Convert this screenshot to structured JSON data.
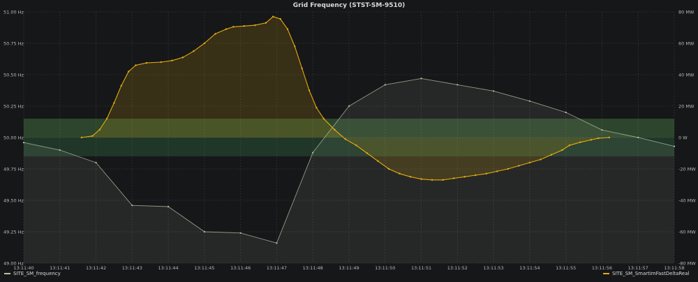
{
  "chart_data": {
    "type": "line",
    "title": "Grid Frequency (STST-SM-9510)",
    "x": [
      "13:11:40",
      "13:11:41",
      "13:11:42",
      "13:11:43",
      "13:11:44",
      "13:11:45",
      "13:11:46",
      "13:11:47",
      "13:11:48",
      "13:11:49",
      "13:11:50",
      "13:11:51",
      "13:11:52",
      "13:11:53",
      "13:11:54",
      "13:11:55",
      "13:11:56",
      "13:11:57",
      "13:11:58"
    ],
    "left_axis": {
      "ticks": [
        "51.00 Hz",
        "50.75 Hz",
        "50.50 Hz",
        "50.25 Hz",
        "50.00 Hz",
        "49.75 Hz",
        "49.50 Hz",
        "49.25 Hz",
        "49.00 Hz"
      ],
      "ylim": [
        49.0,
        51.0
      ]
    },
    "right_axis": {
      "ticks": [
        "80 MW",
        "60 MW",
        "40 MW",
        "20 MW",
        "0 W",
        "-20 MW",
        "-40 MW",
        "-60 MW",
        "-80 MW"
      ],
      "ylim": [
        -80,
        80
      ]
    },
    "threshold_bands": [
      {
        "from": 50.0,
        "to": 50.15,
        "color": "#2f4a2f"
      },
      {
        "from": 49.85,
        "to": 50.0,
        "color": "#203a2a"
      }
    ],
    "series": [
      {
        "name": "SITE_SM_frequency",
        "axis": "left",
        "color": "#b7c3a6",
        "points": [
          [
            "13:11:40",
            49.96
          ],
          [
            "13:11:41",
            49.9
          ],
          [
            "13:11:42",
            49.8
          ],
          [
            "13:11:43",
            49.46
          ],
          [
            "13:11:44",
            49.45
          ],
          [
            "13:11:45",
            49.25
          ],
          [
            "13:11:46",
            49.24
          ],
          [
            "13:11:47",
            49.16
          ],
          [
            "13:11:48",
            49.88
          ],
          [
            "13:11:49",
            50.25
          ],
          [
            "13:11:50",
            50.42
          ],
          [
            "13:11:51",
            50.47
          ],
          [
            "13:11:52",
            50.42
          ],
          [
            "13:11:53",
            50.37
          ],
          [
            "13:11:54",
            50.29
          ],
          [
            "13:11:55",
            50.2
          ],
          [
            "13:11:56",
            50.06
          ],
          [
            "13:11:57",
            50.0
          ],
          [
            "13:11:58",
            49.93
          ]
        ]
      },
      {
        "name": "SITE_SM_SmartimFastDeltaReal",
        "axis": "right",
        "color": "#e5ac0e",
        "points": [
          [
            "13:11:41.6",
            0
          ],
          [
            "13:11:41.9",
            1
          ],
          [
            "13:11:42.1",
            5
          ],
          [
            "13:11:42.3",
            12
          ],
          [
            "13:11:42.5",
            22
          ],
          [
            "13:11:42.7",
            33
          ],
          [
            "13:11:42.9",
            42
          ],
          [
            "13:11:43.1",
            46
          ],
          [
            "13:11:43.4",
            47.5
          ],
          [
            "13:11:43.8",
            48
          ],
          [
            "13:11:44.1",
            49
          ],
          [
            "13:11:44.4",
            51
          ],
          [
            "13:11:44.7",
            55
          ],
          [
            "13:11:45.0",
            60
          ],
          [
            "13:11:45.3",
            66
          ],
          [
            "13:11:45.6",
            69
          ],
          [
            "13:11:45.8",
            70.5
          ],
          [
            "13:11:46.1",
            71
          ],
          [
            "13:11:46.4",
            71.5
          ],
          [
            "13:11:46.7",
            73
          ],
          [
            "13:11:46.9",
            77
          ],
          [
            "13:11:47.1",
            75.5
          ],
          [
            "13:11:47.3",
            69
          ],
          [
            "13:11:47.5",
            58
          ],
          [
            "13:11:47.7",
            44
          ],
          [
            "13:11:47.9",
            30
          ],
          [
            "13:11:48.1",
            19
          ],
          [
            "13:11:48.3",
            12
          ],
          [
            "13:11:48.6",
            5
          ],
          [
            "13:11:48.9",
            -1
          ],
          [
            "13:11:49.2",
            -5
          ],
          [
            "13:11:49.5",
            -10
          ],
          [
            "13:11:49.8",
            -15
          ],
          [
            "13:11:50.1",
            -20
          ],
          [
            "13:11:50.4",
            -23
          ],
          [
            "13:11:50.7",
            -25
          ],
          [
            "13:11:51.0",
            -26.5
          ],
          [
            "13:11:51.3",
            -27
          ],
          [
            "13:11:51.6",
            -27
          ],
          [
            "13:11:51.9",
            -26
          ],
          [
            "13:11:52.2",
            -25
          ],
          [
            "13:11:52.5",
            -24
          ],
          [
            "13:11:52.8",
            -23
          ],
          [
            "13:11:53.1",
            -21.5
          ],
          [
            "13:11:53.4",
            -20
          ],
          [
            "13:11:53.7",
            -18
          ],
          [
            "13:11:54.0",
            -16
          ],
          [
            "13:11:54.3",
            -14
          ],
          [
            "13:11:54.6",
            -11
          ],
          [
            "13:11:54.9",
            -8
          ],
          [
            "13:11:55.1",
            -5
          ],
          [
            "13:11:55.4",
            -3
          ],
          [
            "13:11:55.7",
            -1.5
          ],
          [
            "13:11:55.9",
            -0.5
          ],
          [
            "13:11:56.2",
            0
          ]
        ]
      }
    ],
    "grid": true,
    "legend_position": "bottom"
  }
}
